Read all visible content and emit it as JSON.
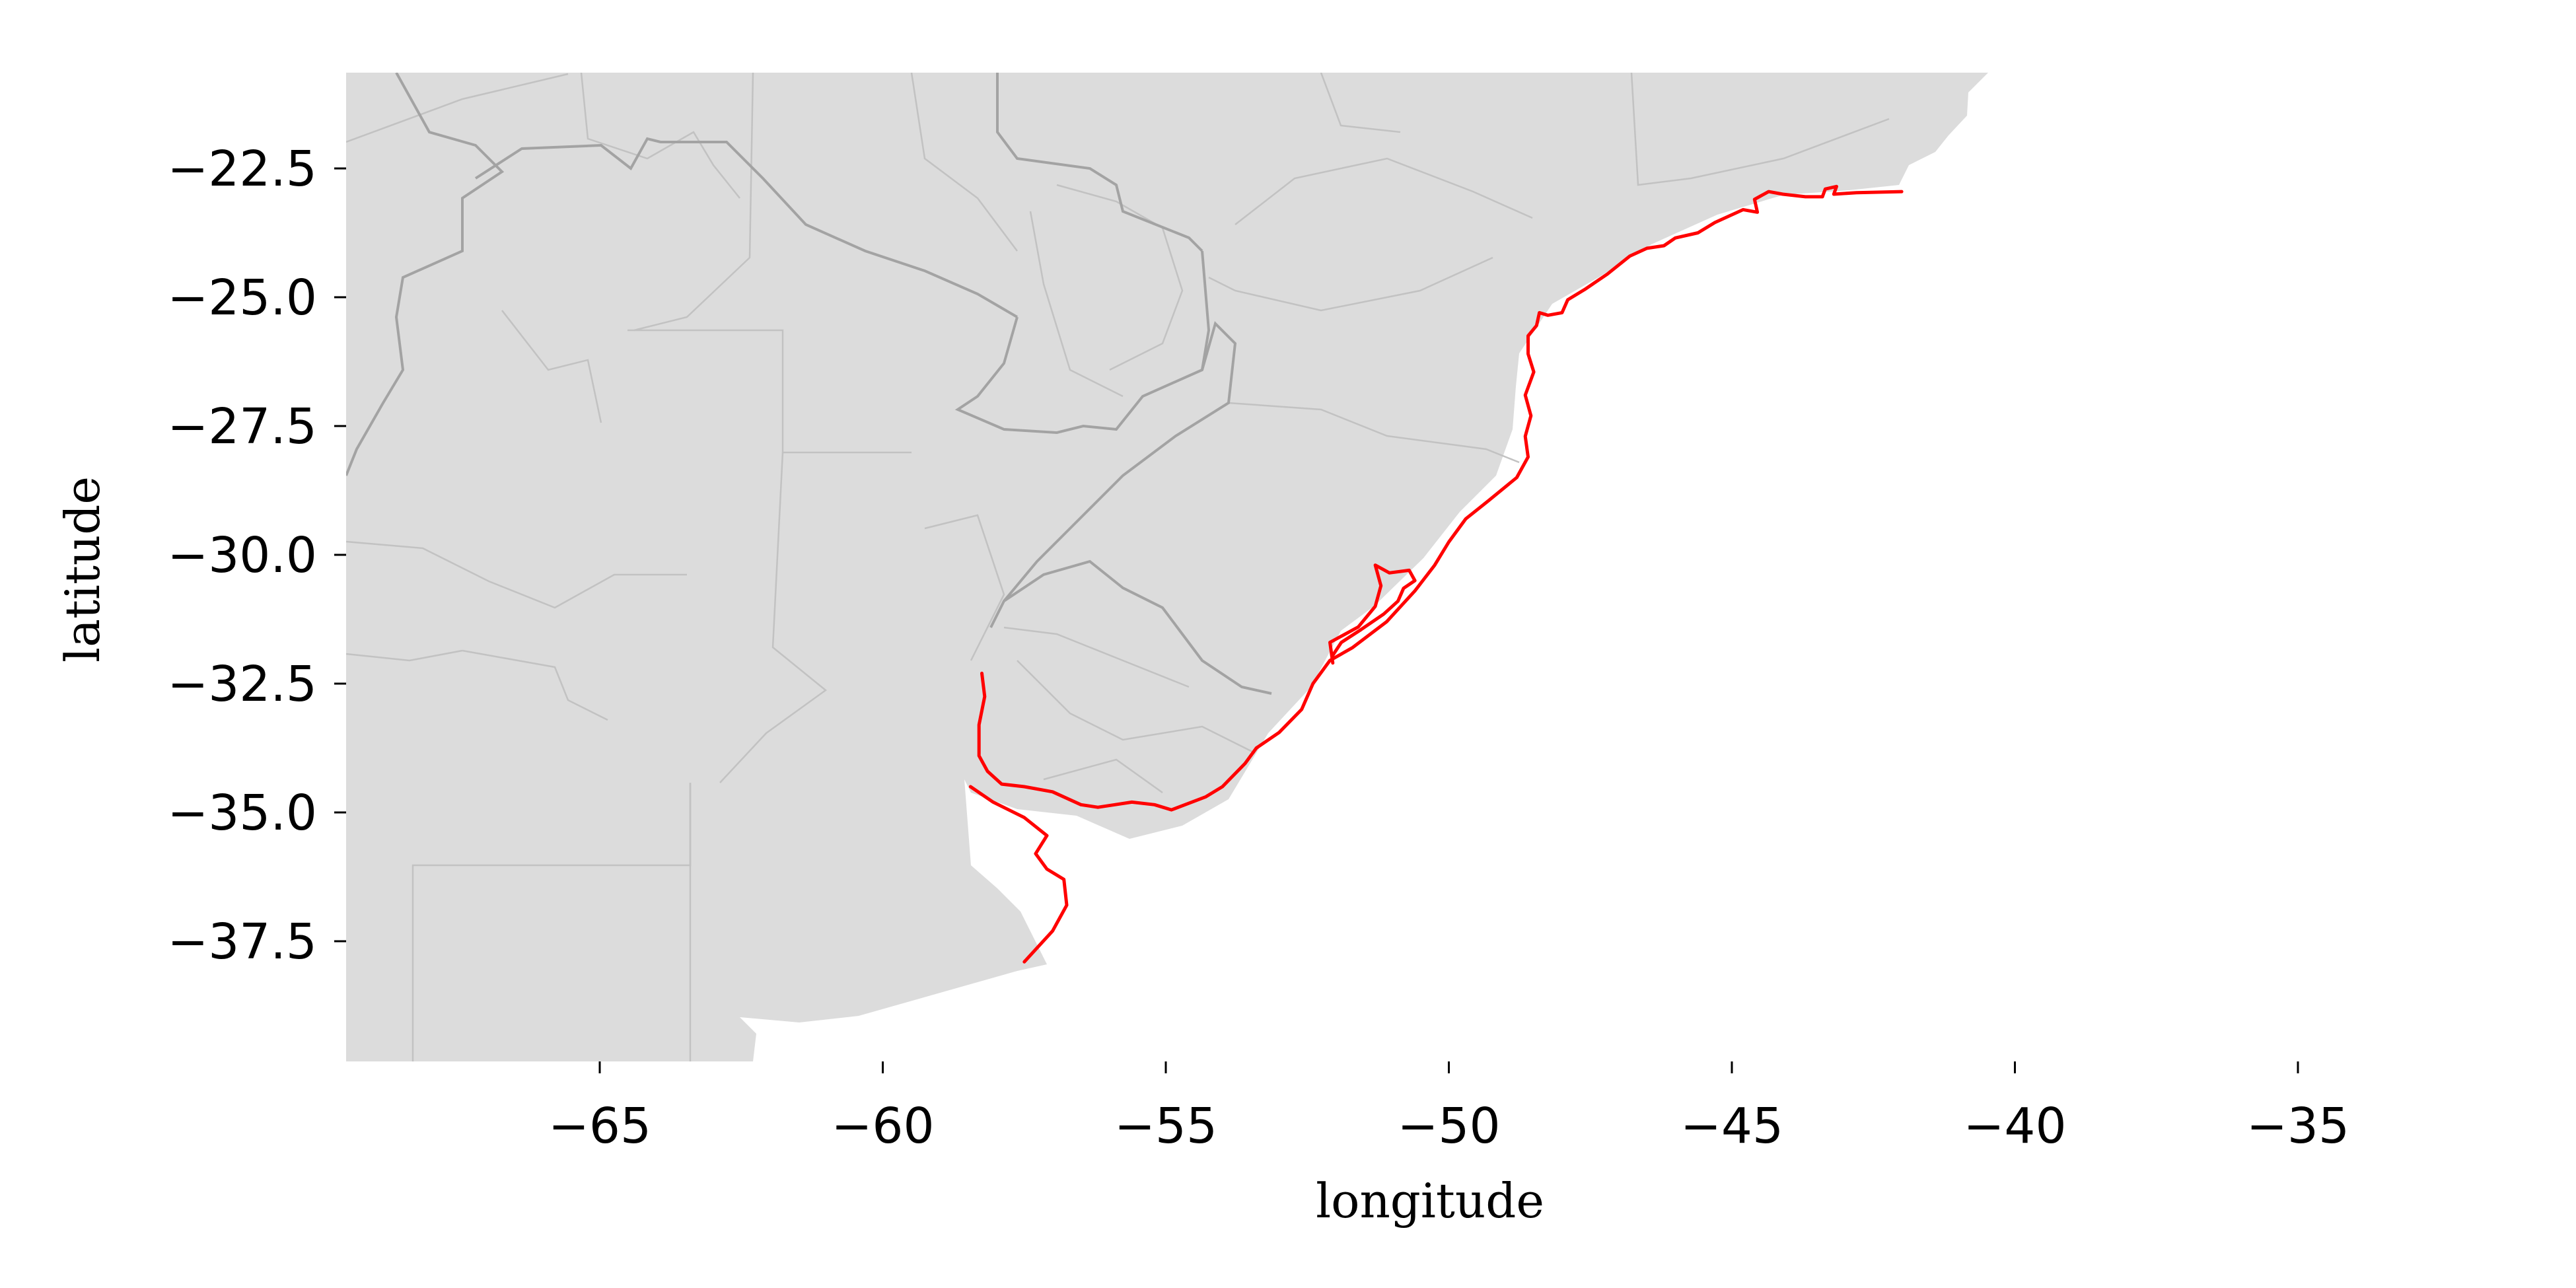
{
  "chart_data": {
    "type": "map",
    "xlabel": "longitude",
    "ylabel": "latitude",
    "xlim": [
      -70,
      -29
    ],
    "ylim": [
      -40,
      -20.8
    ],
    "xticks": [
      -65,
      -60,
      -55,
      -50,
      -45,
      -40,
      -35
    ],
    "xtick_labels": [
      "−65",
      "−60",
      "−55",
      "−50",
      "−45",
      "−40",
      "−35"
    ],
    "yticks": [
      -22.5,
      -25.0,
      -27.5,
      -30.0,
      -32.5,
      -35.0,
      -37.5
    ],
    "ytick_labels": [
      "−22.5",
      "−25.0",
      "−27.5",
      "−30.0",
      "−32.5",
      "−35.0",
      "−37.5"
    ],
    "grid": false,
    "background_land_color": "#dcdcdc",
    "admin_line_color": "#c2c2c2",
    "border_line_color": "#a3a3a3",
    "series": [
      {
        "color": "#ff0000",
        "points": [
          [
            -42.0,
            -22.95
          ],
          [
            -42.8,
            -22.97
          ],
          [
            -43.2,
            -23.0
          ],
          [
            -43.15,
            -22.85
          ],
          [
            -43.35,
            -22.9
          ],
          [
            -43.4,
            -23.05
          ],
          [
            -43.7,
            -23.05
          ],
          [
            -44.1,
            -23.0
          ],
          [
            -44.35,
            -22.95
          ],
          [
            -44.6,
            -23.1
          ],
          [
            -44.55,
            -23.35
          ],
          [
            -44.8,
            -23.3
          ],
          [
            -45.3,
            -23.55
          ],
          [
            -45.6,
            -23.75
          ],
          [
            -46.0,
            -23.85
          ],
          [
            -46.2,
            -24.0
          ],
          [
            -46.5,
            -24.05
          ],
          [
            -46.8,
            -24.2
          ],
          [
            -47.2,
            -24.55
          ],
          [
            -47.6,
            -24.85
          ],
          [
            -47.9,
            -25.05
          ],
          [
            -48.0,
            -25.3
          ],
          [
            -48.25,
            -25.35
          ],
          [
            -48.4,
            -25.3
          ],
          [
            -48.45,
            -25.55
          ],
          [
            -48.6,
            -25.75
          ],
          [
            -48.6,
            -26.1
          ],
          [
            -48.5,
            -26.45
          ],
          [
            -48.65,
            -26.9
          ],
          [
            -48.55,
            -27.3
          ],
          [
            -48.65,
            -27.7
          ],
          [
            -48.6,
            -28.1
          ],
          [
            -48.8,
            -28.5
          ],
          [
            -49.3,
            -28.95
          ],
          [
            -49.7,
            -29.3
          ],
          [
            -50.0,
            -29.75
          ],
          [
            -50.25,
            -30.2
          ],
          [
            -50.6,
            -30.7
          ],
          [
            -51.1,
            -31.3
          ],
          [
            -51.7,
            -31.8
          ],
          [
            -52.1,
            -32.05
          ],
          [
            -52.4,
            -32.5
          ],
          [
            -52.6,
            -33.0
          ],
          [
            -53.0,
            -33.45
          ],
          [
            -53.4,
            -33.75
          ],
          [
            -53.6,
            -34.05
          ],
          [
            -54.0,
            -34.5
          ],
          [
            -54.3,
            -34.7
          ],
          [
            -54.9,
            -34.95
          ],
          [
            -55.2,
            -34.85
          ],
          [
            -55.6,
            -34.8
          ],
          [
            -55.9,
            -34.85
          ],
          [
            -56.2,
            -34.9
          ],
          [
            -56.5,
            -34.85
          ],
          [
            -57.0,
            -34.6
          ],
          [
            -57.5,
            -34.5
          ],
          [
            -57.9,
            -34.45
          ],
          [
            -58.15,
            -34.2
          ],
          [
            -58.3,
            -33.9
          ],
          [
            -58.3,
            -33.3
          ],
          [
            -58.2,
            -32.75
          ],
          [
            -58.25,
            -32.3
          ]
        ]
      },
      {
        "color": "#ff0000",
        "points": [
          [
            -58.45,
            -34.5
          ],
          [
            -58.05,
            -34.8
          ],
          [
            -57.5,
            -35.1
          ],
          [
            -57.1,
            -35.45
          ],
          [
            -57.3,
            -35.8
          ],
          [
            -57.1,
            -36.1
          ],
          [
            -56.8,
            -36.3
          ],
          [
            -56.75,
            -36.8
          ],
          [
            -57.0,
            -37.3
          ],
          [
            -57.5,
            -37.9
          ]
        ]
      },
      {
        "color": "#ff0000",
        "points": [
          [
            -52.05,
            -32.1
          ],
          [
            -52.1,
            -31.7
          ],
          [
            -51.6,
            -31.4
          ],
          [
            -51.3,
            -31.0
          ],
          [
            -51.2,
            -30.6
          ],
          [
            -51.3,
            -30.2
          ],
          [
            -51.05,
            -30.35
          ],
          [
            -50.7,
            -30.3
          ],
          [
            -50.6,
            -30.5
          ],
          [
            -50.8,
            -30.65
          ],
          [
            -50.9,
            -30.9
          ],
          [
            -51.15,
            -31.15
          ],
          [
            -51.55,
            -31.45
          ],
          [
            -51.9,
            -31.7
          ],
          [
            -52.05,
            -31.95
          ]
        ]
      }
    ]
  }
}
